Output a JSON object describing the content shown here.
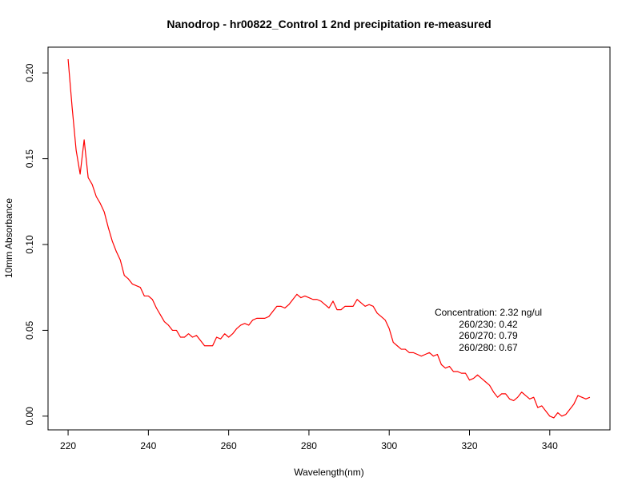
{
  "chart_data": {
    "type": "line",
    "title": "Nanodrop - hr00822_Control 1 2nd precipitation re-measured",
    "xlabel": "Wavelength(nm)",
    "ylabel": "10mm Absorbance",
    "xlim": [
      215,
      355
    ],
    "ylim": [
      -0.008,
      0.215
    ],
    "x_ticks": [
      220,
      240,
      260,
      280,
      300,
      320,
      340
    ],
    "x_tick_labels": [
      "220",
      "240",
      "260",
      "280",
      "300",
      "320",
      "340"
    ],
    "y_ticks": [
      0.0,
      0.05,
      0.1,
      0.15,
      0.2
    ],
    "y_tick_labels": [
      "0.00",
      "0.05",
      "0.10",
      "0.15",
      "0.20"
    ],
    "grid": false,
    "series": [
      {
        "color": "#ff0000",
        "x": [
          220,
          221,
          222,
          223,
          224,
          225,
          226,
          227,
          228,
          229,
          230,
          231,
          232,
          233,
          234,
          235,
          236,
          237,
          238,
          239,
          240,
          241,
          242,
          243,
          244,
          245,
          246,
          247,
          248,
          249,
          250,
          251,
          252,
          253,
          254,
          255,
          256,
          257,
          258,
          259,
          260,
          261,
          262,
          263,
          264,
          265,
          266,
          267,
          268,
          269,
          270,
          271,
          272,
          273,
          274,
          275,
          276,
          277,
          278,
          279,
          280,
          281,
          282,
          283,
          284,
          285,
          286,
          287,
          288,
          289,
          290,
          291,
          292,
          293,
          294,
          295,
          296,
          297,
          298,
          299,
          300,
          301,
          302,
          303,
          304,
          305,
          306,
          307,
          308,
          309,
          310,
          311,
          312,
          313,
          314,
          315,
          316,
          317,
          318,
          319,
          320,
          321,
          322,
          323,
          324,
          325,
          326,
          327,
          328,
          329,
          330,
          331,
          332,
          333,
          334,
          335,
          336,
          337,
          338,
          339,
          340,
          341,
          342,
          343,
          344,
          345,
          346,
          347,
          348,
          349,
          350
        ],
        "y": [
          0.208,
          0.18,
          0.155,
          0.141,
          0.161,
          0.139,
          0.135,
          0.128,
          0.124,
          0.119,
          0.11,
          0.102,
          0.096,
          0.091,
          0.082,
          0.08,
          0.077,
          0.076,
          0.075,
          0.07,
          0.07,
          0.068,
          0.063,
          0.059,
          0.055,
          0.053,
          0.05,
          0.05,
          0.046,
          0.046,
          0.048,
          0.046,
          0.047,
          0.044,
          0.041,
          0.041,
          0.041,
          0.046,
          0.045,
          0.048,
          0.046,
          0.048,
          0.051,
          0.053,
          0.054,
          0.053,
          0.056,
          0.057,
          0.057,
          0.057,
          0.058,
          0.061,
          0.064,
          0.064,
          0.063,
          0.065,
          0.068,
          0.071,
          0.069,
          0.07,
          0.069,
          0.068,
          0.068,
          0.067,
          0.065,
          0.063,
          0.067,
          0.062,
          0.062,
          0.064,
          0.064,
          0.064,
          0.068,
          0.066,
          0.064,
          0.065,
          0.064,
          0.06,
          0.058,
          0.056,
          0.051,
          0.043,
          0.041,
          0.039,
          0.039,
          0.037,
          0.037,
          0.036,
          0.035,
          0.036,
          0.037,
          0.035,
          0.036,
          0.03,
          0.028,
          0.029,
          0.026,
          0.026,
          0.025,
          0.025,
          0.021,
          0.022,
          0.024,
          0.022,
          0.02,
          0.018,
          0.014,
          0.011,
          0.013,
          0.013,
          0.01,
          0.009,
          0.011,
          0.014,
          0.012,
          0.01,
          0.011,
          0.005,
          0.006,
          0.003,
          0.0,
          -0.001,
          0.002,
          0.0,
          0.001,
          0.004,
          0.007,
          0.012,
          0.011,
          0.01,
          0.011
        ]
      }
    ],
    "annotations": [
      "Concentration: 2.32 ng/ul",
      "260/230: 0.42",
      "260/270: 0.79",
      "260/280: 0.67"
    ]
  }
}
